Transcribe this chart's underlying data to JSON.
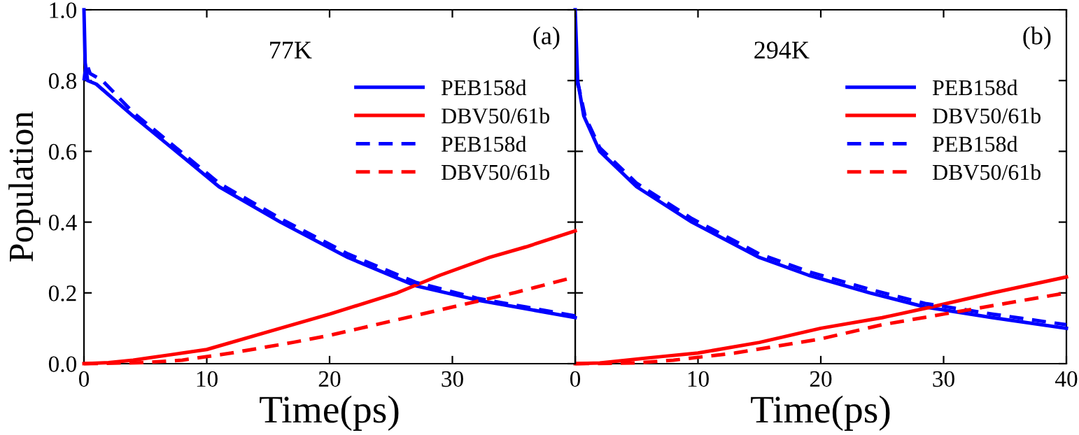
{
  "chart_data": [
    {
      "type": "line",
      "xlabel": "Time(ps)",
      "ylabel": "Population",
      "annotations": [
        "77K",
        "(a)"
      ],
      "xlim": [
        0,
        40
      ],
      "xticks": [
        0,
        10,
        20,
        30,
        {
          "value": 40,
          "label": null
        }
      ],
      "ylim": [
        0,
        1.0
      ],
      "yticks": [
        {
          "value": 0,
          "label": "0.0"
        },
        0.2,
        0.4,
        0.6,
        0.8,
        {
          "value": 1.0,
          "label": "1.0"
        }
      ],
      "legend": "top right",
      "grid": false,
      "series": [
        {
          "name": "PEB158d",
          "color": "#0000ff",
          "line_style": "solid",
          "x": [
            0,
            0.1,
            0.3,
            1,
            4,
            7.5,
            11,
            16,
            21.5,
            27,
            32,
            36,
            40
          ],
          "values": [
            1.0,
            0.85,
            0.8,
            0.79,
            0.7,
            0.6,
            0.5,
            0.4,
            0.3,
            0.22,
            0.18,
            0.155,
            0.13
          ]
        },
        {
          "name": "DBV50/61b",
          "color": "#ff0000",
          "line_style": "solid",
          "x": [
            0,
            2,
            4,
            7,
            10,
            15,
            20,
            25.5,
            29,
            33,
            36,
            40
          ],
          "values": [
            0,
            0.003,
            0.01,
            0.025,
            0.04,
            0.09,
            0.14,
            0.2,
            0.25,
            0.3,
            0.33,
            0.375
          ]
        },
        {
          "name": "PEB158d",
          "color": "#0000ff",
          "line_style": "dashed",
          "x": [
            0,
            0.2,
            0.5,
            1.5,
            4,
            7.5,
            11,
            16,
            21.5,
            27,
            32,
            36,
            40
          ],
          "values": [
            0.8,
            0.85,
            0.82,
            0.8,
            0.71,
            0.61,
            0.51,
            0.41,
            0.31,
            0.23,
            0.185,
            0.16,
            0.135
          ]
        },
        {
          "name": "DBV50/61b",
          "color": "#ff0000",
          "line_style": "dashed",
          "x": [
            0,
            5,
            8,
            12,
            17,
            20,
            25,
            30,
            35,
            40
          ],
          "values": [
            0,
            0.003,
            0.01,
            0.03,
            0.06,
            0.08,
            0.12,
            0.16,
            0.2,
            0.245
          ]
        }
      ]
    },
    {
      "type": "line",
      "xlabel": "Time(ps)",
      "annotations": [
        "294K",
        "(b)"
      ],
      "xlim": [
        0,
        40
      ],
      "xticks": [
        0,
        10,
        20,
        30,
        40
      ],
      "ylim": [
        0,
        1.0
      ],
      "yticks": [
        {
          "value": 0,
          "label": null
        },
        {
          "value": 0.2,
          "label": null
        },
        {
          "value": 0.4,
          "label": null
        },
        {
          "value": 0.6,
          "label": null
        },
        {
          "value": 0.8,
          "label": null
        },
        {
          "value": 1.0,
          "label": null
        }
      ],
      "tick_labels": "x",
      "legend": "top right",
      "grid": false,
      "series": [
        {
          "name": "PEB158d",
          "color": "#0000ff",
          "line_style": "solid",
          "x": [
            0,
            0.2,
            0.7,
            2,
            5,
            9.5,
            15,
            19,
            24,
            28.5,
            34,
            40
          ],
          "values": [
            1.0,
            0.8,
            0.7,
            0.6,
            0.5,
            0.4,
            0.3,
            0.25,
            0.2,
            0.16,
            0.13,
            0.1
          ]
        },
        {
          "name": "DBV50/61b",
          "color": "#ff0000",
          "line_style": "solid",
          "x": [
            0,
            2,
            7,
            10,
            15,
            20,
            25,
            29,
            34,
            40
          ],
          "values": [
            0,
            0.002,
            0.02,
            0.03,
            0.06,
            0.1,
            0.13,
            0.16,
            0.2,
            0.245
          ]
        },
        {
          "name": "PEB158d",
          "color": "#0000ff",
          "line_style": "dashed",
          "x": [
            0.1,
            0.3,
            0.8,
            2,
            5,
            9.5,
            15,
            19,
            24,
            28.5,
            34,
            40
          ],
          "values": [
            0.8,
            0.78,
            0.7,
            0.61,
            0.51,
            0.41,
            0.31,
            0.26,
            0.21,
            0.17,
            0.14,
            0.11
          ]
        },
        {
          "name": "DBV50/61b",
          "color": "#ff0000",
          "line_style": "dashed",
          "x": [
            0,
            5,
            8,
            13,
            20,
            25,
            30,
            35,
            40
          ],
          "values": [
            0,
            0.002,
            0.01,
            0.03,
            0.07,
            0.11,
            0.14,
            0.17,
            0.2
          ]
        }
      ]
    }
  ]
}
